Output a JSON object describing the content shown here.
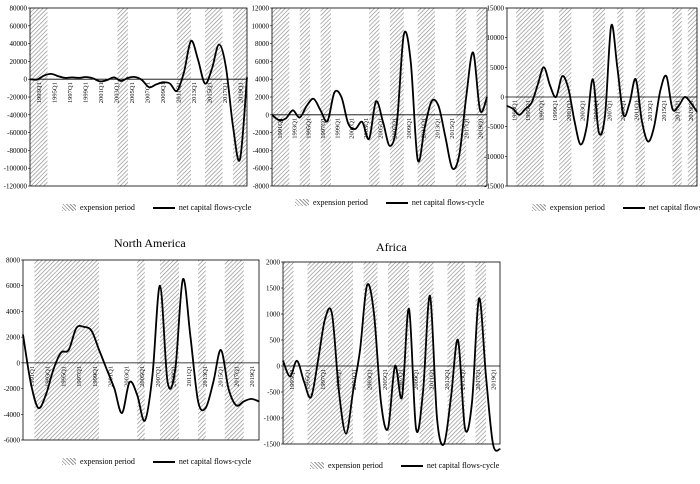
{
  "legend": {
    "expansion_label": "expension period",
    "series_label": "net capital flows-cycle"
  },
  "chart_data": [
    {
      "type": "line",
      "title": "",
      "yticks": [
        80000,
        60000,
        40000,
        20000,
        0,
        -20000,
        -40000,
        -60000,
        -80000,
        -100000,
        -120000
      ],
      "ylim": [
        -120000,
        80000
      ],
      "xlim": [
        1990,
        2021
      ],
      "xticks": [
        "1993Q1",
        "1995Q1",
        "1997Q1",
        "1999Q1",
        "2001Q1",
        "2003Q1",
        "2005Q1",
        "2007Q1",
        "2009Q1",
        "2011Q1",
        "2013Q1",
        "2015Q1",
        "2017Q1",
        "2019Q1"
      ],
      "expansion_periods": [
        [
          1990,
          1992.5
        ],
        [
          2002.5,
          2004
        ],
        [
          2011,
          2013
        ],
        [
          2015,
          2017.5
        ],
        [
          2019,
          2021
        ]
      ],
      "series": [
        {
          "x": [
            1990,
            1991,
            1992,
            1993,
            1994,
            1995,
            1996,
            1997,
            1998,
            1999,
            2000,
            2001,
            2002,
            2003,
            2004,
            2005,
            2006,
            2007,
            2008,
            2009,
            2010,
            2011,
            2012,
            2013,
            2014,
            2015,
            2016,
            2017,
            2018,
            2019,
            2020,
            2021
          ],
          "values": [
            0,
            -500,
            4000,
            6000,
            3500,
            1500,
            2000,
            1500,
            2500,
            1000,
            -2500,
            -1000,
            2000,
            -2000,
            1500,
            2500,
            -1000,
            -9000,
            -6000,
            -3500,
            -5000,
            -13000,
            8000,
            43000,
            22000,
            -5000,
            12000,
            39000,
            13000,
            -53000,
            -90000,
            2000
          ]
        }
      ]
    },
    {
      "type": "line",
      "title": "",
      "yticks": [
        12000,
        10000,
        8000,
        6000,
        4000,
        2000,
        0,
        -2000,
        -4000,
        -6000,
        -8000
      ],
      "ylim": [
        -8000,
        12000
      ],
      "xlim": [
        1990,
        2021
      ],
      "xticks": [
        "1991Q1",
        "1993Q1",
        "1995Q1",
        "1997Q1",
        "1999Q1",
        "2001Q1",
        "2003Q1",
        "2005Q1",
        "2007Q1",
        "2009Q1",
        "2011Q1",
        "2013Q1",
        "2015Q1",
        "2017Q1",
        "2019Q1"
      ],
      "expansion_periods": [
        [
          1990,
          1992.5
        ],
        [
          1994,
          1995.5
        ],
        [
          1997,
          1998.5
        ],
        [
          2004,
          2005.5
        ],
        [
          2007,
          2009
        ],
        [
          2011,
          2013.5
        ],
        [
          2016.5,
          2018
        ],
        [
          2019.5,
          2021
        ]
      ],
      "series": [
        {
          "x": [
            1990,
            1991,
            1992,
            1993,
            1994,
            1995,
            1996,
            1997,
            1998,
            1999,
            2000,
            2001,
            2002,
            2003,
            2004,
            2005,
            2006,
            2007,
            2008,
            2009,
            2010,
            2011,
            2012,
            2013,
            2014,
            2015,
            2016,
            2017,
            2018,
            2019,
            2020,
            2021
          ],
          "values": [
            0,
            -600,
            -400,
            500,
            -300,
            1000,
            1800,
            500,
            -700,
            2500,
            2000,
            -1000,
            -1600,
            -800,
            -2700,
            1500,
            -800,
            -3500,
            -1000,
            9000,
            6000,
            -5000,
            -1500,
            1500,
            1000,
            -2500,
            -6000,
            -4500,
            2000,
            7000,
            500,
            2000
          ]
        }
      ]
    },
    {
      "type": "line",
      "title": "",
      "yticks": [
        15000,
        10000,
        5000,
        0,
        -5000,
        -10000,
        -15000
      ],
      "ylim": [
        -15000,
        15000
      ],
      "xlim": [
        1990,
        2021
      ],
      "xticks": [
        "1993Q1",
        "1995Q1",
        "1997Q1",
        "1999Q1",
        "2001Q1",
        "2003Q1",
        "2005Q1",
        "2007Q1",
        "2009Q1",
        "2011Q1",
        "2013Q1",
        "2015Q1",
        "2017Q1",
        "2019Q1"
      ],
      "expansion_periods": [
        [
          1991.5,
          1996
        ],
        [
          1998.5,
          2000.5
        ],
        [
          2004,
          2006
        ],
        [
          2008,
          2009
        ],
        [
          2011,
          2012.5
        ],
        [
          2017,
          2018.5
        ],
        [
          2019.5,
          2021
        ]
      ],
      "series": [
        {
          "x": [
            1990,
            1991,
            1992,
            1993,
            1994,
            1995,
            1996,
            1997,
            1998,
            1999,
            2000,
            2001,
            2002,
            2003,
            2004,
            2005,
            2006,
            2007,
            2008,
            2009,
            2010,
            2011,
            2012,
            2013,
            2014,
            2015,
            2016,
            2017,
            2018,
            2019,
            2020,
            2021
          ],
          "values": [
            -1500,
            -2000,
            -3000,
            -2000,
            -1000,
            2000,
            5000,
            2000,
            0,
            3500,
            1500,
            -4000,
            -8000,
            -5000,
            3000,
            -6000,
            -3000,
            12000,
            5000,
            -3000,
            -1000,
            3000,
            -4000,
            -7500,
            -5000,
            1000,
            3500,
            -2000,
            -1500,
            0,
            -1000,
            -2500
          ]
        }
      ]
    },
    {
      "type": "line",
      "title": "North America",
      "yticks": [
        8000,
        6000,
        4000,
        2000,
        0,
        -2000,
        -4000,
        -6000
      ],
      "ylim": [
        -6000,
        8000
      ],
      "xlim": [
        1990,
        2021
      ],
      "xticks": [
        "1991Q1",
        "1993Q1",
        "1995Q1",
        "1997Q1",
        "1999Q1",
        "2001Q1",
        "2003Q1",
        "2005Q1",
        "2007Q1",
        "2009Q1",
        "2011Q1",
        "2013Q1",
        "2015Q1",
        "2017Q1",
        "2019Q1"
      ],
      "expansion_periods": [
        [
          1991.5,
          2000
        ],
        [
          2005,
          2006
        ],
        [
          2008,
          2010.5
        ],
        [
          2013,
          2014
        ],
        [
          2016.5,
          2019
        ]
      ],
      "series": [
        {
          "x": [
            1990,
            1991,
            1992,
            1993,
            1994,
            1995,
            1996,
            1997,
            1998,
            1999,
            2000,
            2001,
            2002,
            2003,
            2004,
            2005,
            2006,
            2007,
            2008,
            2009,
            2010,
            2011,
            2012,
            2013,
            2014,
            2015,
            2016,
            2017,
            2018,
            2019,
            2020,
            2021
          ],
          "values": [
            2200,
            -1500,
            -3500,
            -2500,
            -500,
            800,
            1000,
            2700,
            2800,
            2500,
            1000,
            -500,
            -2000,
            -3900,
            -1500,
            -2500,
            -4500,
            -1000,
            6000,
            -1500,
            -500,
            6500,
            2000,
            -3000,
            -3500,
            -1500,
            1000,
            -2000,
            -3300,
            -3000,
            -2800,
            -3000
          ]
        }
      ]
    },
    {
      "type": "line",
      "title": "Africa",
      "yticks": [
        2000,
        1500,
        1000,
        500,
        0,
        -500,
        -1000,
        -1500
      ],
      "ylim": [
        -1500,
        2000
      ],
      "xlim": [
        1990,
        2021
      ],
      "xticks": [
        "1993Q1",
        "1995Q1",
        "1997Q1",
        "1999Q1",
        "2001Q1",
        "2003Q1",
        "2005Q1",
        "2007Q1",
        "2009Q1",
        "2011Q1",
        "2013Q1",
        "2015Q1",
        "2017Q1",
        "2019Q1"
      ],
      "expansion_periods": [
        [
          1990,
          1991.5
        ],
        [
          1993.5,
          2000
        ],
        [
          2001.5,
          2003.5
        ],
        [
          2005,
          2008
        ],
        [
          2009.5,
          2011.5
        ],
        [
          2013.5,
          2016
        ],
        [
          2017.5,
          2019
        ]
      ],
      "series": [
        {
          "x": [
            1990,
            1991,
            1992,
            1993,
            1994,
            1995,
            1996,
            1997,
            1998,
            1999,
            2000,
            2001,
            2002,
            2003,
            2004,
            2005,
            2006,
            2007,
            2008,
            2009,
            2010,
            2011,
            2012,
            2013,
            2014,
            2015,
            2016,
            2017,
            2018,
            2019,
            2020,
            2021
          ],
          "values": [
            100,
            -200,
            100,
            -300,
            -600,
            100,
            900,
            1000,
            -500,
            -1300,
            -500,
            300,
            1550,
            1000,
            -700,
            -1200,
            0,
            -600,
            1100,
            -1200,
            -500,
            1350,
            -1000,
            -1500,
            -600,
            500,
            -1200,
            -700,
            1300,
            -200,
            -1500,
            -1600
          ]
        }
      ]
    }
  ]
}
